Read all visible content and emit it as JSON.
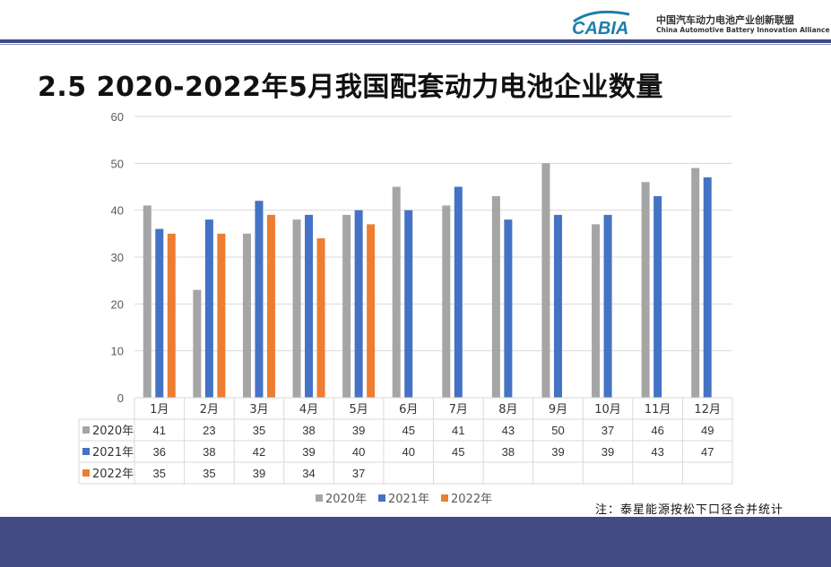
{
  "header": {
    "logo_text": "CABIA",
    "logo_cn": "中国汽车动力电池产业创新联盟",
    "logo_en": "China Automotive Battery Innovation Alliance"
  },
  "title": "2.5 2020-2022年5月我国配套动力电池企业数量",
  "note": "注：泰星能源按松下口径合并统计",
  "colors": {
    "s2020": "#a5a5a5",
    "s2021": "#4472c4",
    "s2022": "#ed7d31",
    "header_rule": "#3d4a86",
    "footer": "#424b83"
  },
  "chart_data": {
    "type": "bar",
    "categories": [
      "1月",
      "2月",
      "3月",
      "4月",
      "5月",
      "6月",
      "7月",
      "8月",
      "9月",
      "10月",
      "11月",
      "12月"
    ],
    "series": [
      {
        "name": "2020年",
        "values": [
          41,
          23,
          35,
          38,
          39,
          45,
          41,
          43,
          50,
          37,
          46,
          49
        ]
      },
      {
        "name": "2021年",
        "values": [
          36,
          38,
          42,
          39,
          40,
          40,
          45,
          38,
          39,
          39,
          43,
          47
        ]
      },
      {
        "name": "2022年",
        "values": [
          35,
          35,
          39,
          34,
          37,
          null,
          null,
          null,
          null,
          null,
          null,
          null
        ]
      }
    ],
    "ylim": [
      0,
      60
    ],
    "yticks": [
      0,
      10,
      20,
      30,
      40,
      50,
      60
    ],
    "grid": true,
    "legend": "bottom",
    "data_table": true
  }
}
